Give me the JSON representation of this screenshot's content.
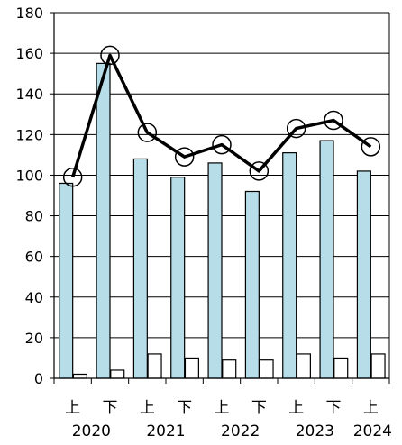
{
  "chart_data": {
    "type": "bar",
    "categories": [
      "上",
      "下",
      "上",
      "下",
      "上",
      "下",
      "上",
      "下",
      "上"
    ],
    "year_labels": [
      "2020",
      "2021",
      "2022",
      "2023",
      "2024"
    ],
    "series": [
      {
        "type": "bar",
        "values": [
          96,
          155,
          108,
          99,
          106,
          92,
          111,
          117,
          102
        ],
        "color": "#b7dde8"
      },
      {
        "type": "bar",
        "values": [
          2,
          4,
          12,
          10,
          9,
          9,
          12,
          10,
          12
        ],
        "color": "#ffffff"
      },
      {
        "type": "line",
        "values": [
          99,
          159,
          121,
          109,
          115,
          102,
          123,
          127,
          114
        ],
        "color": "#000000"
      }
    ],
    "ylim": [
      0,
      180
    ],
    "yticks": [
      0,
      20,
      40,
      60,
      80,
      100,
      120,
      140,
      160,
      180
    ],
    "grid": true,
    "legend": "none"
  }
}
